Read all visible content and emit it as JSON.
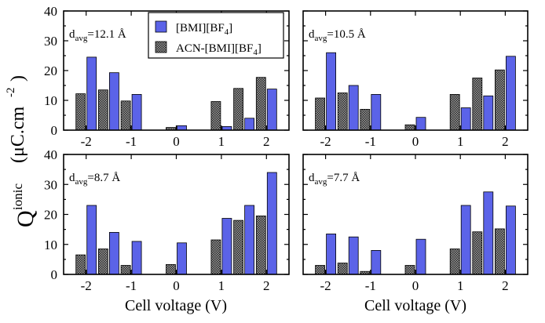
{
  "chart_data": {
    "type": "bar",
    "ylabel": {
      "main": "Q",
      "superscript": "ionic",
      "unit": "(μC.cm",
      "unit_superscript": "-2",
      "unit_close": ")"
    },
    "xlabel": "Cell voltage (V)",
    "xlim": [
      -2.5,
      2.5
    ],
    "ylim": [
      0,
      40
    ],
    "xticks": [
      -2,
      -1,
      0,
      1,
      2
    ],
    "xtick_labels": [
      "-2",
      "-1",
      "0",
      "1",
      "2"
    ],
    "yticks": [
      0,
      10,
      20,
      30,
      40
    ],
    "ytick_labels": [
      "0",
      "10",
      "20",
      "30",
      "40"
    ],
    "legend": {
      "position": "top-center of first panel",
      "entries": [
        {
          "series": "blue",
          "label": "[BMI][BF",
          "sub": "4",
          "tail": "]"
        },
        {
          "series": "gray",
          "label": "ACN-[BMI][BF",
          "sub": "4",
          "tail": "]"
        }
      ]
    },
    "colors": {
      "blue": "#5b63e8",
      "gray": "#6e6e6e",
      "hatch_dark": "#222222"
    },
    "panels": [
      {
        "id": "top-left",
        "annotation": {
          "prefix": "d",
          "sub": "avg",
          "text": "=12.1 Å"
        },
        "categories": [
          -2,
          -1.5,
          -1,
          0,
          1,
          1.5,
          2
        ],
        "series": [
          {
            "name": "ACN-[BMI][BF4]",
            "key": "gray",
            "values": [
              12.2,
              13.5,
              9.8,
              0.9,
              9.6,
              14.0,
              17.7
            ]
          },
          {
            "name": "[BMI][BF4]",
            "key": "blue",
            "values": [
              24.5,
              19.3,
              12.0,
              1.5,
              1.2,
              4.0,
              13.8
            ]
          }
        ]
      },
      {
        "id": "top-right",
        "annotation": {
          "prefix": "d",
          "sub": "avg",
          "text": "=10.5 Å"
        },
        "categories": [
          -2,
          -1.5,
          -1,
          0,
          1,
          1.5,
          2
        ],
        "series": [
          {
            "name": "ACN-[BMI][BF4]",
            "key": "gray",
            "values": [
              10.8,
              12.5,
              7.0,
              1.8,
              12.0,
              17.5,
              20.2
            ]
          },
          {
            "name": "[BMI][BF4]",
            "key": "blue",
            "values": [
              26.0,
              15.0,
              12.0,
              4.3,
              7.5,
              11.5,
              24.8
            ]
          }
        ]
      },
      {
        "id": "bottom-left",
        "annotation": {
          "prefix": "d",
          "sub": "avg",
          "text": "=8.7 Å"
        },
        "categories": [
          -2,
          -1.5,
          -1,
          0,
          1,
          1.5,
          2
        ],
        "series": [
          {
            "name": "ACN-[BMI][BF4]",
            "key": "gray",
            "values": [
              6.5,
              8.5,
              3.0,
              3.3,
              11.5,
              18.0,
              19.5
            ]
          },
          {
            "name": "[BMI][BF4]",
            "key": "blue",
            "values": [
              23.0,
              14.0,
              11.0,
              10.5,
              18.7,
              23.0,
              34.0
            ]
          }
        ]
      },
      {
        "id": "bottom-right",
        "annotation": {
          "prefix": "d",
          "sub": "avg",
          "text": "=7.7 Å"
        },
        "categories": [
          -2,
          -1.5,
          -1,
          0,
          1,
          1.5,
          2
        ],
        "series": [
          {
            "name": "ACN-[BMI][BF4]",
            "key": "gray",
            "values": [
              3.0,
              3.8,
              1.0,
              3.0,
              8.5,
              14.2,
              15.2
            ]
          },
          {
            "name": "[BMI][BF4]",
            "key": "blue",
            "values": [
              13.5,
              12.5,
              8.0,
              11.7,
              23.0,
              27.5,
              22.8
            ]
          }
        ]
      }
    ]
  }
}
